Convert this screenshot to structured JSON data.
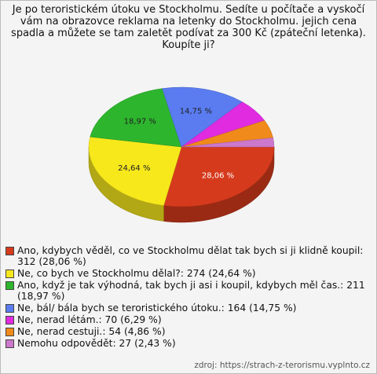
{
  "chart_data": {
    "type": "pie3d",
    "title": "Je po teroristickém útoku ve Stockholmu. Sedíte u počítače a vyskočí vám na obrazovce reklama na letenky do Stockholmu. jejich cena spadla a můžete se tam zaletět podívat za 300 Kč (zpáteční letenka). Koupíte ji?",
    "categories": [
      "Ano, kdybych věděl, co ve Stockholmu dělat tak bych si ji klidně koupil: 312 (28,06 %)",
      "Ne, co bych ve Stockholmu dělal?: 274 (24,64 %)",
      "Ano, když je tak výhodná, tak bych ji asi i koupil, kdybych měl čas.: 211 (18,97 %)",
      "Ne, bál/ bála bych se teroristického útoku.: 164 (14,75 %)",
      "Ne, nerad létám.: 70 (6,29 %)",
      "Ne, nerad cestuji.: 54 (4,86 %)",
      "Nemohu odpovědět: 27 (2,43 %)"
    ],
    "values": [
      28.06,
      24.64,
      18.97,
      14.75,
      6.29,
      4.86,
      2.43
    ],
    "value_labels": [
      "28,06 %",
      "24,64 %",
      "18,97 %",
      "14,75 %",
      null,
      null,
      null
    ],
    "colors": [
      "#d63a1c",
      "#f7e81c",
      "#2db52d",
      "#5a7cf0",
      "#e02be0",
      "#f08a1a",
      "#cc78cc"
    ],
    "source": "zdroj: https://strach-z-terorismu.vyplnto.cz"
  }
}
